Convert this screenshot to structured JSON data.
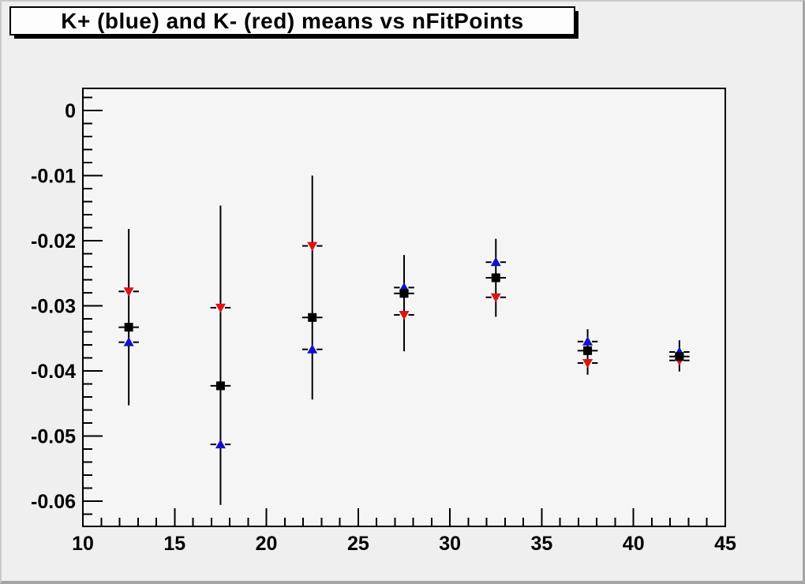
{
  "window": {
    "background_color": "#efefef",
    "frame_fill_color": "#f5f5f5",
    "border_color": "#a5a5a5"
  },
  "title_box": {
    "text": "K+ (blue) and K- (red) means vs nFitPoints",
    "fill": "#fdfdfd",
    "border_color": "#000000",
    "shadow_color": "#000000"
  },
  "chart_data": {
    "type": "scatter",
    "title": "K+ (blue) and K- (red) means vs nFitPoints",
    "xlabel": "",
    "ylabel": "",
    "xlim": [
      10,
      45
    ],
    "ylim": [
      -0.0639,
      0.0034
    ],
    "grid": false,
    "legend_position": "none",
    "x_major_ticks": [
      10,
      15,
      20,
      25,
      30,
      35,
      40,
      45
    ],
    "x_tick_labels": [
      "10",
      "15",
      "20",
      "25",
      "30",
      "35",
      "40",
      "45"
    ],
    "x_minor_step": 1,
    "y_major_ticks": [
      0,
      -0.01,
      -0.02,
      -0.03,
      -0.04,
      -0.05,
      -0.06
    ],
    "y_tick_labels": [
      "0",
      "-0.01",
      "-0.02",
      "-0.03",
      "-0.04",
      "-0.05",
      "-0.06"
    ],
    "y_minor_step": 0.002,
    "x": [
      12.5,
      17.5,
      22.5,
      27.5,
      32.5,
      37.5,
      42.5
    ],
    "x_error_half_width": 0.55,
    "series": [
      {
        "name": "K+ (blue)",
        "marker": "triangle-up",
        "color": "#1212c8",
        "y": [
          -0.0356,
          -0.0513,
          -0.0367,
          -0.0272,
          -0.0233,
          -0.0355,
          -0.0371
        ]
      },
      {
        "name": "K- (red)",
        "marker": "triangle-down",
        "color": "#e01212",
        "y": [
          -0.0278,
          -0.0303,
          -0.0208,
          -0.0314,
          -0.0287,
          -0.0388,
          -0.0384
        ]
      },
      {
        "name": "black square (unlabeled)",
        "marker": "square",
        "color": "#000000",
        "y": [
          -0.0333,
          -0.0423,
          -0.0318,
          -0.0281,
          -0.0257,
          -0.0369,
          -0.0378
        ]
      }
    ],
    "error_bar_extent": [
      {
        "top": -0.0182,
        "bottom": -0.0453
      },
      {
        "top": -0.0146,
        "bottom": -0.0606
      },
      {
        "top": -0.01,
        "bottom": -0.0444
      },
      {
        "top": -0.0222,
        "bottom": -0.037
      },
      {
        "top": -0.0197,
        "bottom": -0.0317
      },
      {
        "top": -0.0336,
        "bottom": -0.0406
      },
      {
        "top": -0.0353,
        "bottom": -0.0401
      }
    ],
    "error_bar_color": "#000000"
  }
}
